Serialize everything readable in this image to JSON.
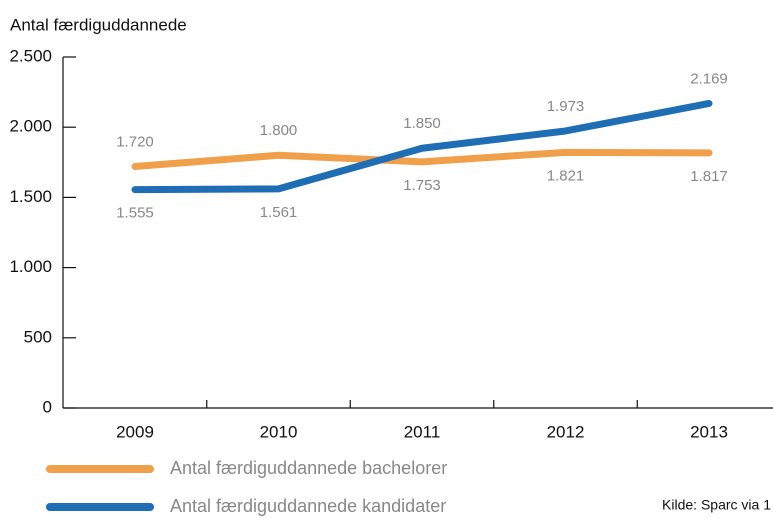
{
  "chart_data": {
    "type": "line",
    "y_label": "Antal færdiguddannede",
    "categories": [
      "2009",
      "2010",
      "2011",
      "2012",
      "2013"
    ],
    "series": [
      {
        "name": "Antal færdiguddannede bachelorer",
        "color": "#f0a04a",
        "values": [
          1720,
          1800,
          1753,
          1821,
          1817
        ],
        "value_labels": [
          "1.720",
          "1.800",
          "1.753",
          "1.821",
          "1.817"
        ]
      },
      {
        "name": "Antal færdiguddannede kandidater",
        "color": "#1f6db4",
        "values": [
          1555,
          1561,
          1850,
          1973,
          2169
        ],
        "value_labels": [
          "1.555",
          "1.561",
          "1.850",
          "1.973",
          "2.169"
        ]
      }
    ],
    "ylim": [
      0,
      2500
    ],
    "yticks": [
      0,
      500,
      {
        "value": 1000,
        "label": "1.000"
      },
      {
        "value": 1500,
        "label": "1.500"
      },
      {
        "value": 2000,
        "label": "2.000"
      },
      {
        "value": 2500,
        "label": "2.500"
      }
    ],
    "source": "Kilde: Sparc via 1"
  }
}
